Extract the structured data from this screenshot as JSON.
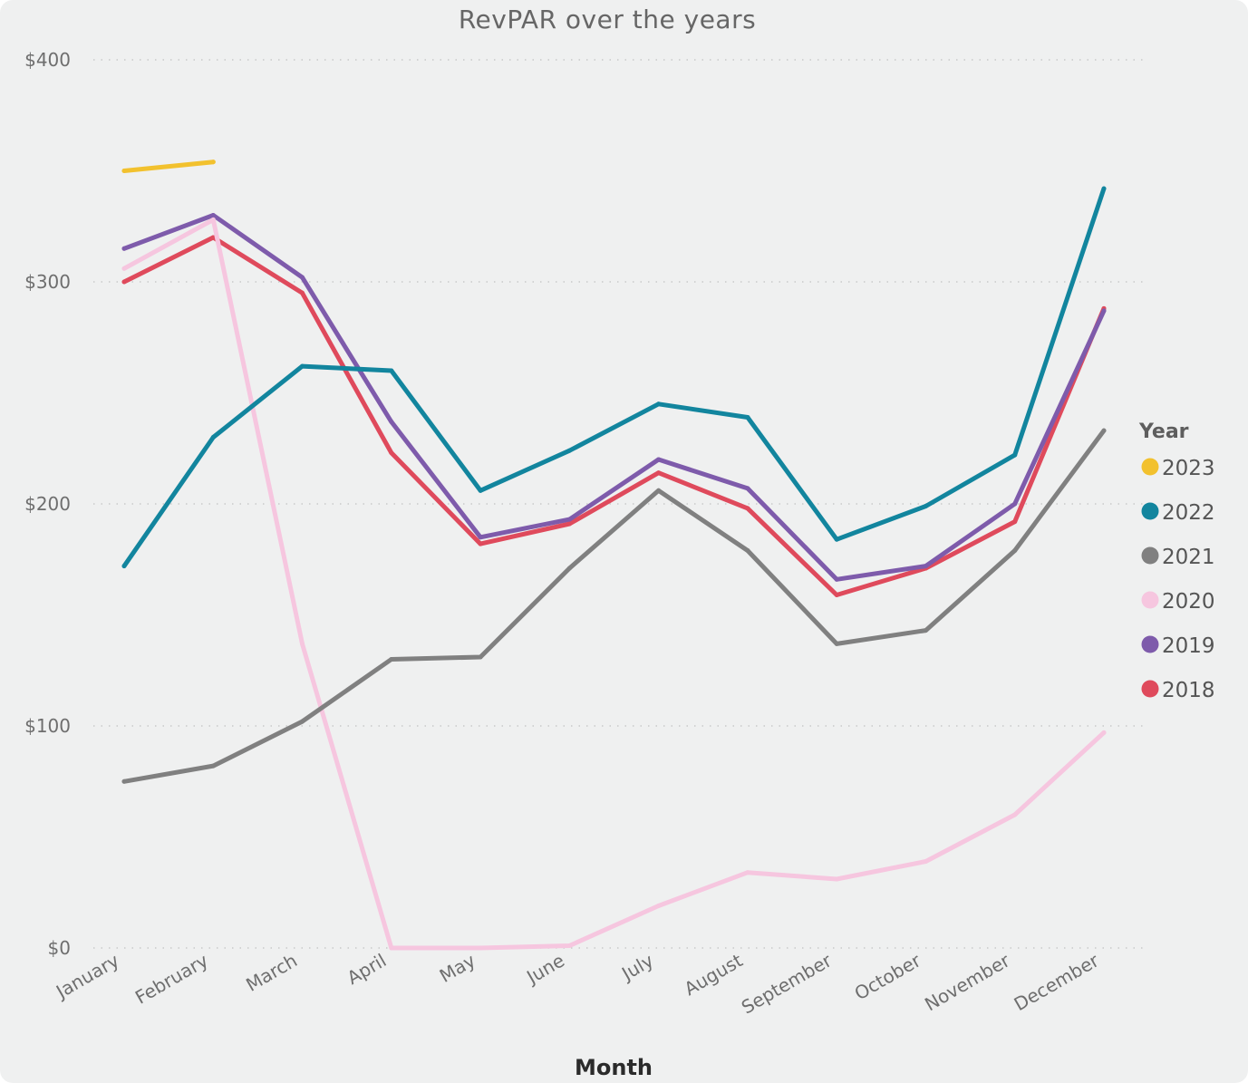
{
  "chart_data": {
    "type": "line",
    "title": "RevPAR over the years",
    "xlabel": "Month",
    "ylabel": "",
    "ylim": [
      0,
      400
    ],
    "yticks": [
      0,
      100,
      200,
      300,
      400
    ],
    "ytick_labels": [
      "$0",
      "$100",
      "$200",
      "$300",
      "$400"
    ],
    "grid": true,
    "categories": [
      "January",
      "February",
      "March",
      "April",
      "May",
      "June",
      "July",
      "August",
      "September",
      "October",
      "November",
      "December"
    ],
    "legend": {
      "title": "Year",
      "position": "right"
    },
    "series": [
      {
        "name": "2023",
        "color": "#f2c12e",
        "values": [
          350,
          354,
          null,
          null,
          null,
          null,
          null,
          null,
          null,
          null,
          null,
          null
        ]
      },
      {
        "name": "2022",
        "color": "#12859e",
        "values": [
          172,
          230,
          262,
          260,
          206,
          224,
          245,
          239,
          184,
          199,
          222,
          342
        ]
      },
      {
        "name": "2021",
        "color": "#808080",
        "values": [
          75,
          82,
          102,
          130,
          131,
          171,
          206,
          179,
          137,
          143,
          179,
          233
        ]
      },
      {
        "name": "2020",
        "color": "#f6c6df",
        "values": [
          306,
          328,
          137,
          0,
          0,
          1,
          19,
          34,
          31,
          39,
          60,
          97
        ]
      },
      {
        "name": "2019",
        "color": "#7e5bab",
        "values": [
          315,
          330,
          302,
          237,
          185,
          193,
          220,
          207,
          166,
          172,
          200,
          287
        ]
      },
      {
        "name": "2018",
        "color": "#df4a5c",
        "values": [
          300,
          320,
          295,
          223,
          182,
          191,
          214,
          198,
          159,
          171,
          192,
          288
        ]
      }
    ]
  }
}
